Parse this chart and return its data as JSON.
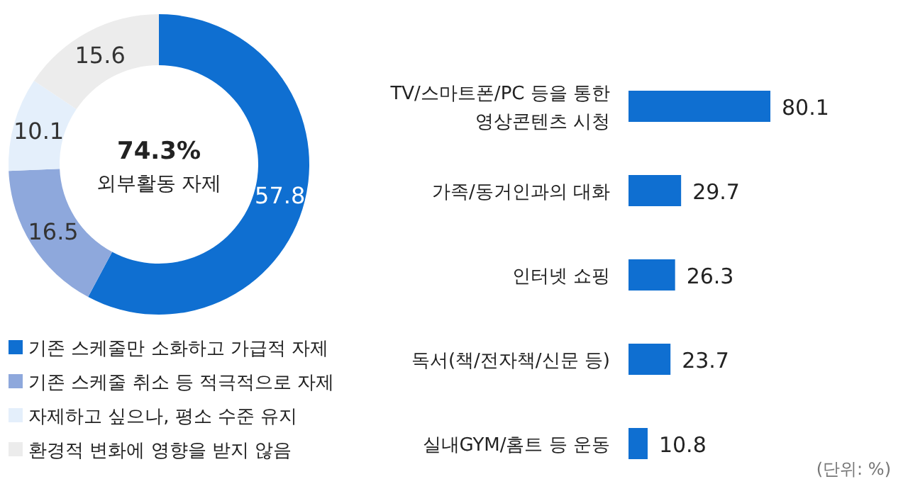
{
  "chart_data": [
    {
      "type": "donut",
      "categories": [
        "기존 스케줄만 소화하고 가급적 자제",
        "기존 스케줄 취소 등 적극적으로 자제",
        "자제하고 싶으나, 평소 수준 유지",
        "환경적 변화에 영향을 받지 않음"
      ],
      "values": [
        57.8,
        16.5,
        10.1,
        15.6
      ],
      "colors": [
        "#0f6fd1",
        "#8ea8dc",
        "#e4effb",
        "#ececec"
      ],
      "data_labels": true,
      "legend": "bottom",
      "annotations": [
        "**74.3%**",
        "외부활동 자제"
      ]
    },
    {
      "type": "bar",
      "orientation": "horizontal",
      "categories": [
        "TV/스마트폰/PC 등을 통한 영상콘텐츠 시청",
        "가족/동거인과의 대화",
        "인터넷 쇼핑",
        "독서(책/전자책/신문 등)",
        "실내GYM/홈트 등 운동"
      ],
      "values": [
        80.1,
        29.7,
        26.3,
        23.7,
        10.8
      ],
      "color": "#0f6fd1",
      "data_labels": true,
      "annotations": [
        "(단위: %)"
      ]
    }
  ]
}
